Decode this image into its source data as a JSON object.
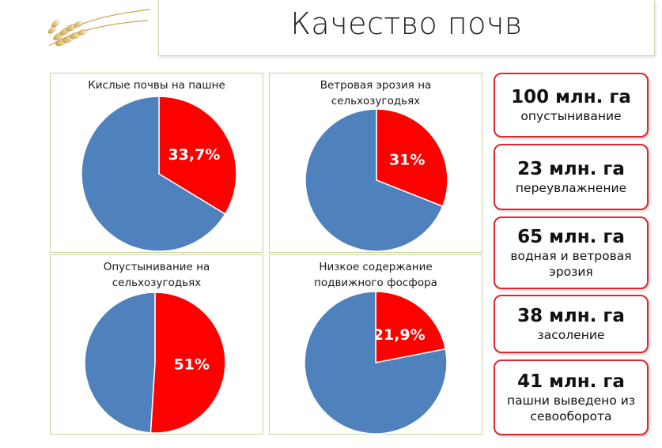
{
  "header": {
    "title": "Качество почв"
  },
  "colors": {
    "primary": "#4f81bd",
    "highlight": "#ff0000",
    "panel_border": "#c9d39a",
    "box_border": "#e0262e"
  },
  "chart_data": [
    {
      "type": "pie",
      "title": "Кислые почвы на пашне",
      "slices": [
        {
          "value": 33.7,
          "label": "33,7%",
          "color": "#ff0000"
        },
        {
          "value": 66.3,
          "label": "",
          "color": "#4f81bd"
        }
      ]
    },
    {
      "type": "pie",
      "title": "Ветровая эрозия на сельхозугодьях",
      "slices": [
        {
          "value": 31,
          "label": "31%",
          "color": "#ff0000"
        },
        {
          "value": 69,
          "label": "",
          "color": "#4f81bd"
        }
      ]
    },
    {
      "type": "pie",
      "title": "Опустынивание на сельхозугодьях",
      "slices": [
        {
          "value": 51,
          "label": "51%",
          "color": "#ff0000"
        },
        {
          "value": 49,
          "label": "",
          "color": "#4f81bd"
        }
      ]
    },
    {
      "type": "pie",
      "title": "Низкое содержание подвижного фосфора",
      "slices": [
        {
          "value": 21.9,
          "label": "21,9%",
          "color": "#ff0000"
        },
        {
          "value": 78.1,
          "label": "",
          "color": "#4f81bd"
        }
      ]
    }
  ],
  "stats": [
    {
      "value": "100 млн. га",
      "label": "опустынивание"
    },
    {
      "value": "23 млн. га",
      "label": "переувлажнение"
    },
    {
      "value": "65 млн. га",
      "label": "водная и ветровая эрозия"
    },
    {
      "value": "38 млн. га",
      "label": "засоление"
    },
    {
      "value": "41 млн. га",
      "label": "пашни выведено из севооборота"
    }
  ]
}
